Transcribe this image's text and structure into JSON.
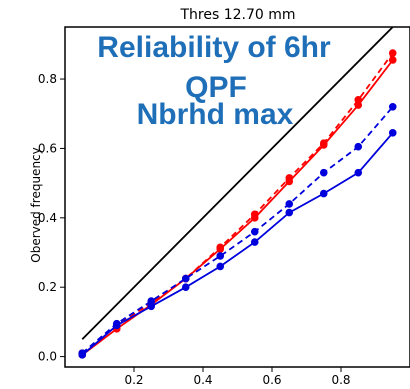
{
  "chart_data": {
    "type": "line",
    "title": "Thres 12.70 mm",
    "overlay_lines": [
      "Reliability of 6hr",
      "QPF",
      "Nbrhd max"
    ],
    "overlay_color": "#1f6fb8",
    "ylabel": "Oberved frequency",
    "xlabel": "",
    "xlim": [
      0.0,
      1.0
    ],
    "ylim": [
      -0.03,
      0.95
    ],
    "xticks": [
      0.2,
      0.4,
      0.6,
      0.8
    ],
    "xtick_labels": [
      "0.2",
      "0.4",
      "0.6",
      "0.8"
    ],
    "yticks": [
      0.0,
      0.2,
      0.4,
      0.6,
      0.8
    ],
    "ytick_labels": [
      "0.0",
      "0.2",
      "0.4",
      "0.6",
      "0.8"
    ],
    "grid": false,
    "reference_line": {
      "x": [
        0.05,
        0.95
      ],
      "y": [
        0.05,
        0.95
      ],
      "color": "#000000"
    },
    "x": [
      0.05,
      0.15,
      0.25,
      0.35,
      0.45,
      0.55,
      0.65,
      0.75,
      0.85,
      0.95
    ],
    "series": [
      {
        "color": "#ff0000",
        "dash": false,
        "values": [
          0.005,
          0.08,
          0.15,
          0.225,
          0.31,
          0.4,
          0.505,
          0.61,
          0.725,
          0.855
        ]
      },
      {
        "color": "#ff0000",
        "dash": true,
        "values": [
          0.01,
          0.09,
          0.155,
          0.225,
          0.315,
          0.41,
          0.515,
          0.615,
          0.74,
          0.875
        ]
      },
      {
        "color": "#0000dd",
        "dash": true,
        "values": [
          0.01,
          0.095,
          0.16,
          0.225,
          0.29,
          0.36,
          0.44,
          0.53,
          0.605,
          0.72
        ]
      },
      {
        "color": "#0000dd",
        "dash": false,
        "values": [
          0.005,
          0.09,
          0.145,
          0.2,
          0.26,
          0.33,
          0.415,
          0.47,
          0.53,
          0.645
        ]
      }
    ]
  }
}
